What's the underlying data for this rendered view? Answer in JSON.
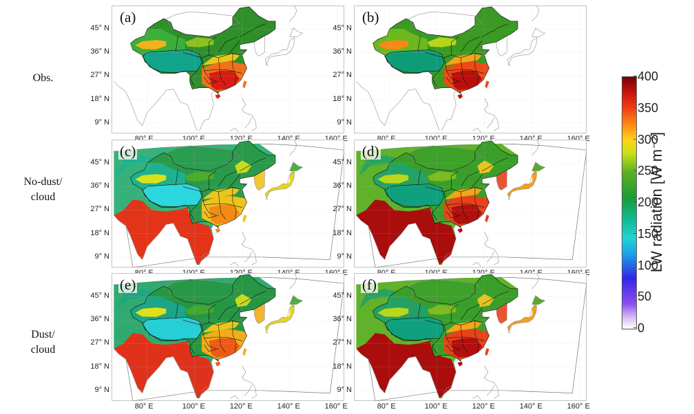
{
  "rows": [
    {
      "label_lines": [
        "Obs."
      ]
    },
    {
      "label_lines": [
        "No-dust/",
        "cloud"
      ]
    },
    {
      "label_lines": [
        "Dust/",
        "cloud"
      ]
    }
  ],
  "panels": [
    {
      "label": "(a)",
      "coverage": "china",
      "variant": "a"
    },
    {
      "label": "(b)",
      "coverage": "china",
      "variant": "b"
    },
    {
      "label": "(c)",
      "coverage": "domain",
      "variant": "c"
    },
    {
      "label": "(d)",
      "coverage": "domain",
      "variant": "d"
    },
    {
      "label": "(e)",
      "coverage": "domain",
      "variant": "e"
    },
    {
      "label": "(f)",
      "coverage": "domain",
      "variant": "f"
    }
  ],
  "lat_ticks": [
    "45° N",
    "36° N",
    "27° N",
    "18° N",
    "9° N"
  ],
  "lat_values": [
    45,
    36,
    27,
    18,
    9
  ],
  "lon_ticks": [
    "80° E",
    "100° E",
    "120° E",
    "140° E",
    "160° E"
  ],
  "lon_values": [
    80,
    100,
    120,
    140,
    160
  ],
  "map_extent": {
    "lon": [
      65,
      163
    ],
    "lat": [
      5,
      54
    ]
  },
  "colorbar": {
    "ticks": [
      "400",
      "350",
      "300",
      "250",
      "200",
      "150",
      "100",
      "50",
      "0"
    ],
    "min": 0,
    "max": 400,
    "unit": "LW radiation [W m⁻²]",
    "colors": [
      "#ffffff",
      "#8a4cf0",
      "#3326e6",
      "#22d3d6",
      "#1a9c3a",
      "#cce019",
      "#ffd21a",
      "#ee3a16",
      "#7a0000"
    ]
  }
}
